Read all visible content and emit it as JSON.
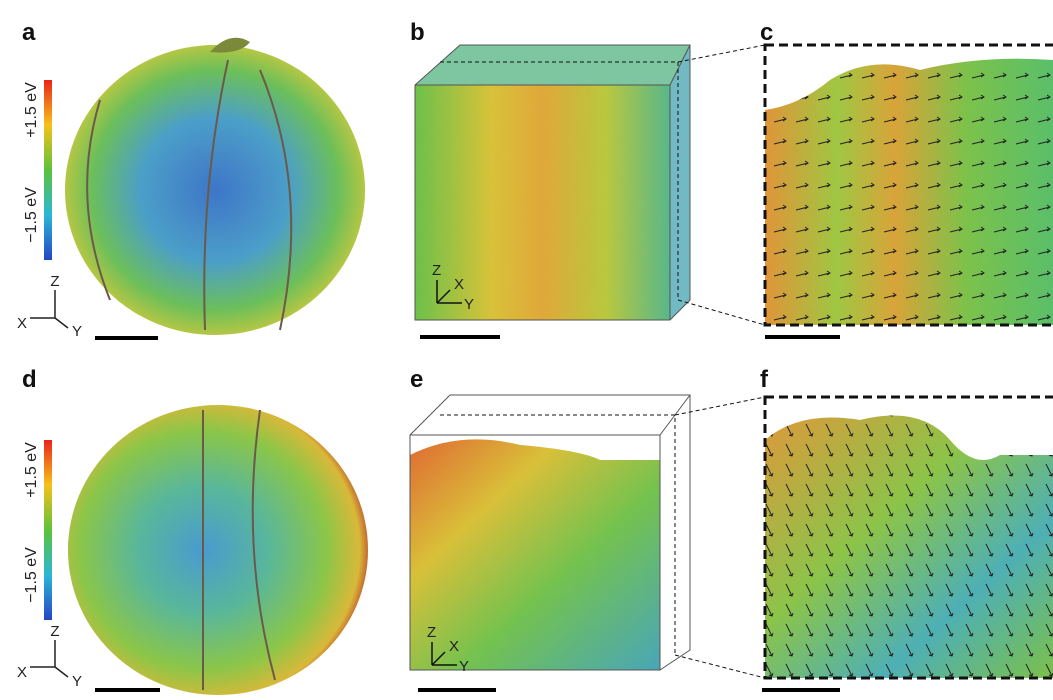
{
  "panels": [
    {
      "label": "a",
      "colorbar": {
        "top": "+1.5 eV",
        "bottom": "−1.5 eV"
      },
      "axes": {
        "z": "Z",
        "x": "X",
        "y": "Y"
      }
    },
    {
      "label": "b",
      "axes": {
        "z": "Z",
        "x": "X",
        "y": "Y"
      }
    },
    {
      "label": "c"
    },
    {
      "label": "d",
      "colorbar": {
        "top": "+1.5 eV",
        "bottom": "−1.5 eV"
      },
      "axes": {
        "z": "Z",
        "x": "X",
        "y": "Y"
      }
    },
    {
      "label": "e",
      "axes": {
        "z": "Z",
        "x": "X",
        "y": "Y"
      }
    },
    {
      "label": "f"
    }
  ]
}
